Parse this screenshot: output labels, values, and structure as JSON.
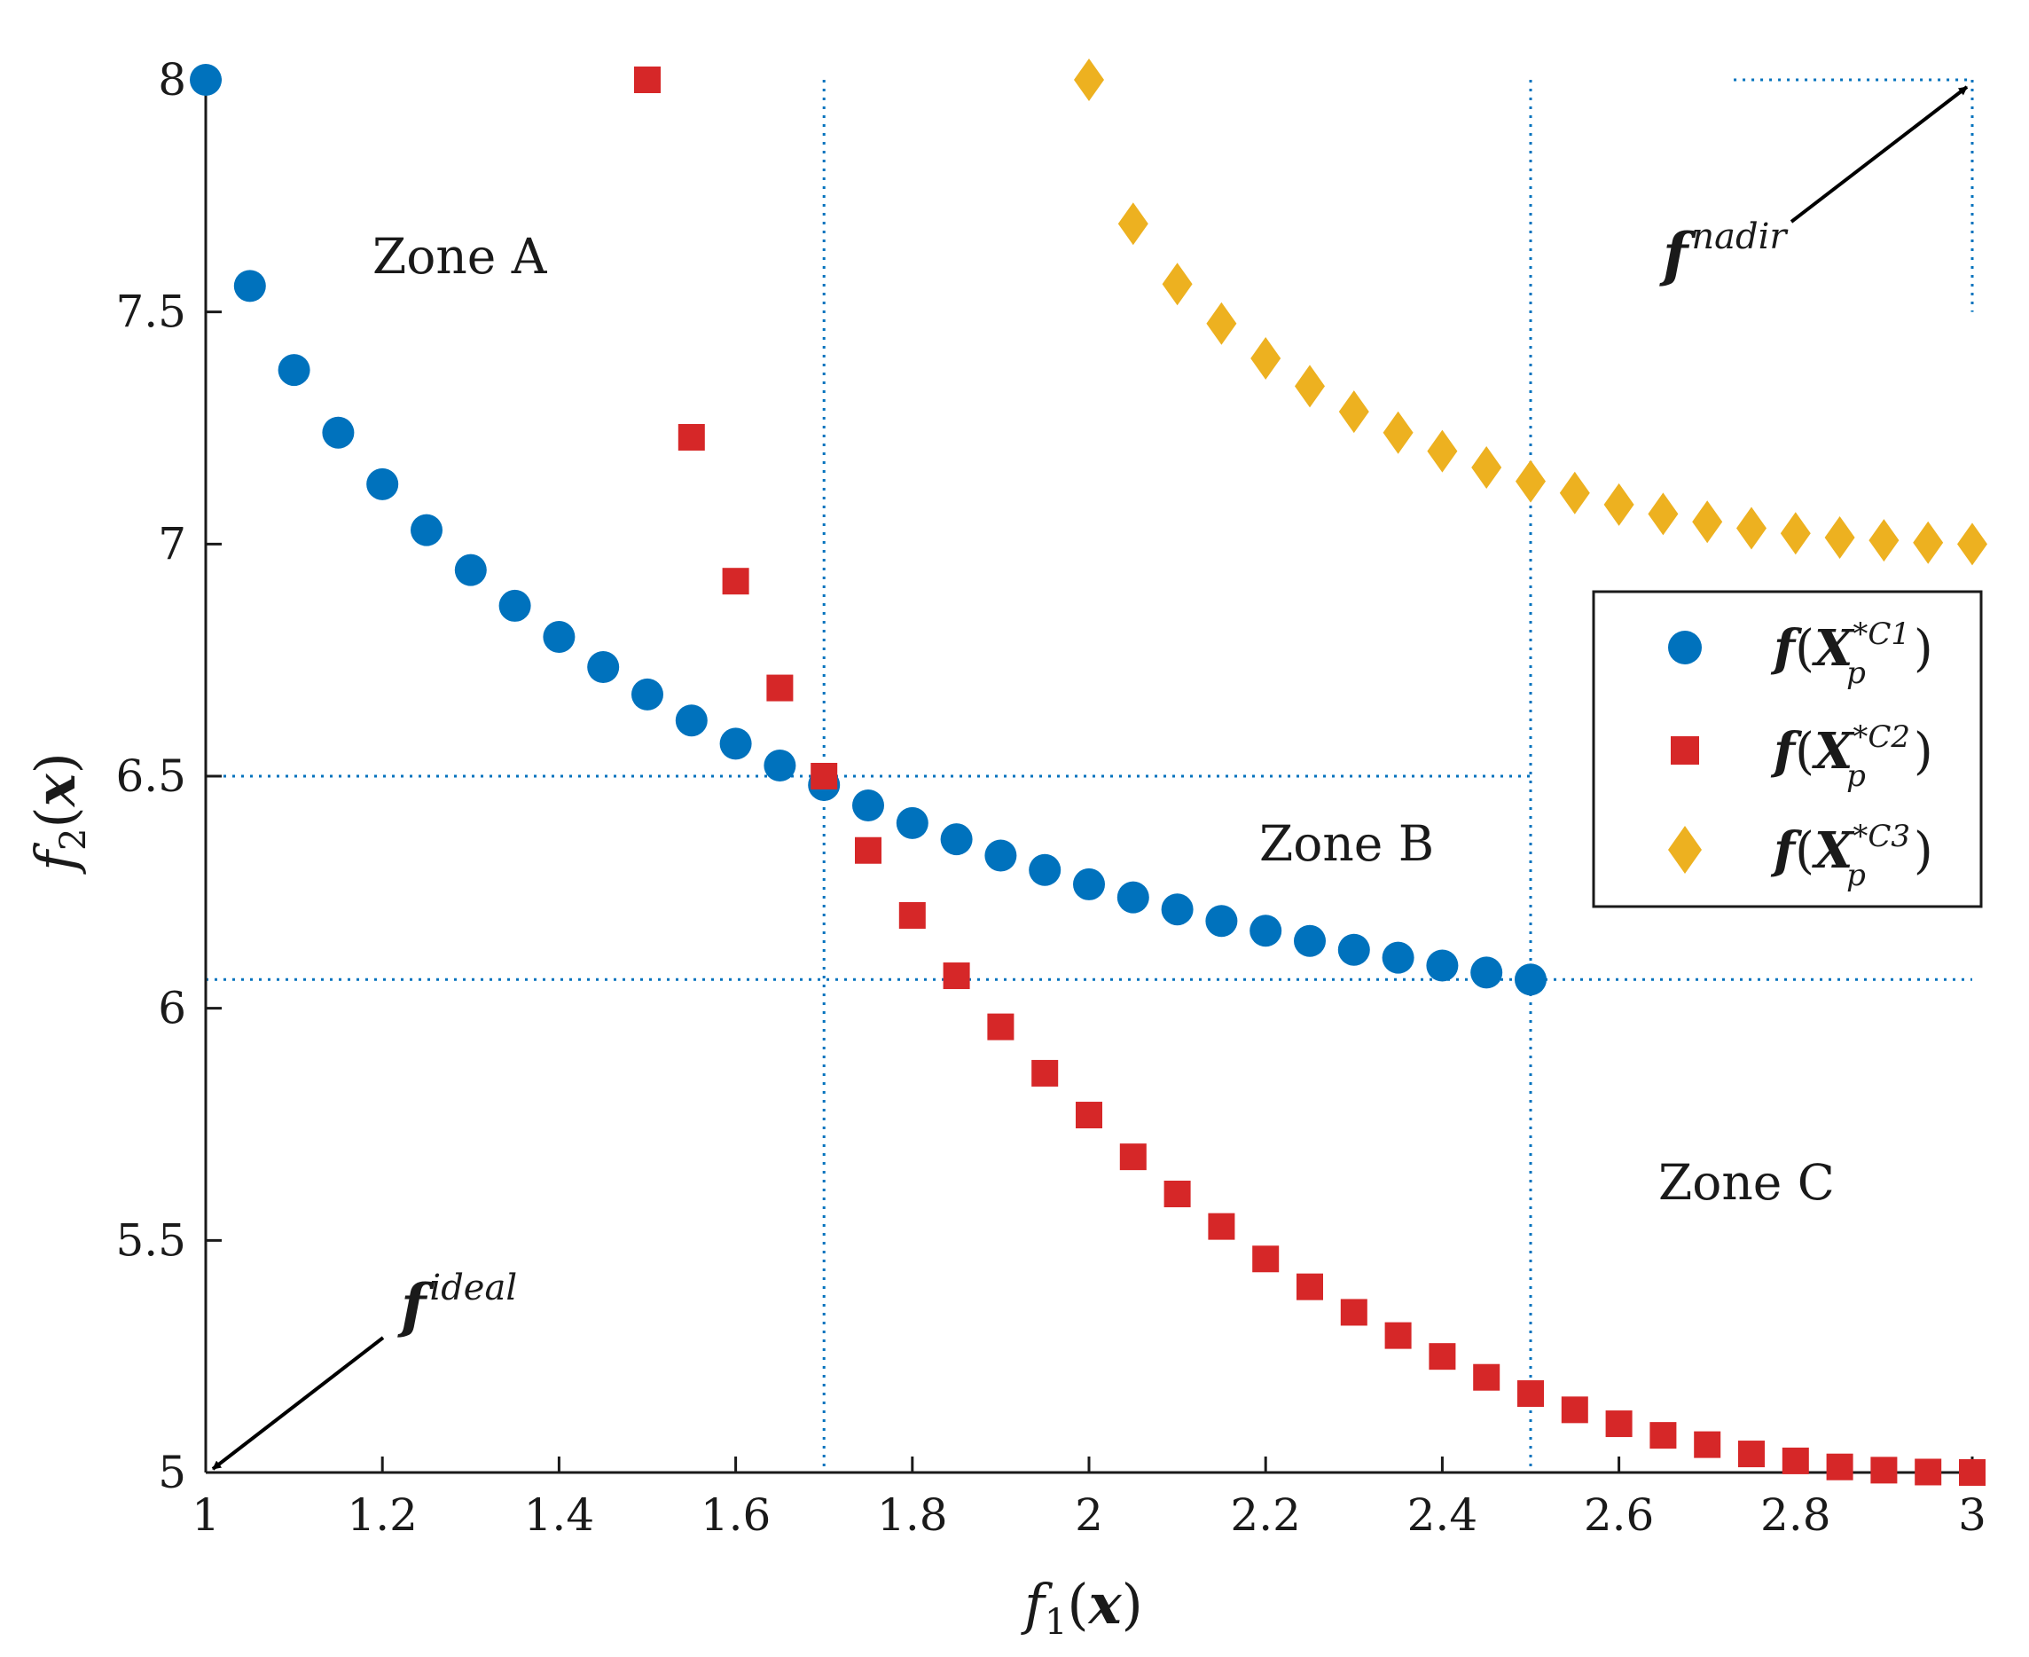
{
  "chart_data": {
    "type": "scatter",
    "title": "",
    "xlabel": "f1(x)",
    "ylabel": "f2(x)",
    "xlim": [
      1,
      3
    ],
    "ylim": [
      5,
      8
    ],
    "xticks": [
      1,
      1.2,
      1.4,
      1.6,
      1.8,
      2,
      2.2,
      2.4,
      2.6,
      2.8,
      3
    ],
    "xtick_labels": [
      "1",
      "1.2",
      "1.4",
      "1.6",
      "1.8",
      "2",
      "2.2",
      "2.4",
      "2.6",
      "2.8",
      "3"
    ],
    "yticks": [
      5,
      5.5,
      6,
      6.5,
      7,
      7.5,
      8
    ],
    "ytick_labels": [
      "5",
      "5.5",
      "6",
      "6.5",
      "7",
      "7.5",
      "8"
    ],
    "grid": false,
    "legend_position": "right",
    "series": [
      {
        "name": "f(X_p^{*C1})",
        "color": "#0072BD",
        "marker": "circle",
        "x": [
          1,
          1.05,
          1.1,
          1.15,
          1.2,
          1.25,
          1.3,
          1.35,
          1.4,
          1.45,
          1.5,
          1.55,
          1.6,
          1.65,
          1.7,
          1.75,
          1.8,
          1.85,
          1.9,
          1.95,
          2,
          2.05,
          2.1,
          2.15,
          2.2,
          2.25,
          2.3,
          2.35,
          2.4,
          2.45,
          2.5
        ],
        "y": [
          8,
          7.556,
          7.375,
          7.24,
          7.129,
          7.03,
          6.944,
          6.867,
          6.8,
          6.735,
          6.676,
          6.62,
          6.57,
          6.523,
          6.481,
          6.437,
          6.399,
          6.364,
          6.329,
          6.298,
          6.267,
          6.239,
          6.213,
          6.188,
          6.167,
          6.145,
          6.126,
          6.109,
          6.092,
          6.077,
          6.062
        ]
      },
      {
        "name": "f(X_p^{*C2})",
        "color": "#D62728",
        "marker": "square",
        "x": [
          1.5,
          1.55,
          1.6,
          1.65,
          1.7,
          1.75,
          1.8,
          1.85,
          1.9,
          1.95,
          2,
          2.05,
          2.1,
          2.15,
          2.2,
          2.25,
          2.3,
          2.35,
          2.4,
          2.45,
          2.5,
          2.55,
          2.6,
          2.65,
          2.7,
          2.75,
          2.8,
          2.85,
          2.9,
          2.95,
          3
        ],
        "y": [
          8,
          7.23,
          6.92,
          6.69,
          6.5,
          6.34,
          6.2,
          6.07,
          5.96,
          5.86,
          5.77,
          5.68,
          5.6,
          5.53,
          5.46,
          5.4,
          5.345,
          5.295,
          5.25,
          5.205,
          5.17,
          5.135,
          5.105,
          5.08,
          5.06,
          5.04,
          5.025,
          5.012,
          5.005,
          5.001,
          5
        ]
      },
      {
        "name": "f(X_p^{*C3})",
        "color": "#EDB120",
        "marker": "diamond",
        "x": [
          2,
          2.05,
          2.1,
          2.15,
          2.2,
          2.25,
          2.3,
          2.35,
          2.4,
          2.45,
          2.5,
          2.55,
          2.6,
          2.65,
          2.7,
          2.75,
          2.8,
          2.85,
          2.9,
          2.95,
          3
        ],
        "y": [
          8,
          7.69,
          7.56,
          7.475,
          7.4,
          7.34,
          7.285,
          7.24,
          7.2,
          7.165,
          7.135,
          7.11,
          7.085,
          7.065,
          7.048,
          7.034,
          7.023,
          7.014,
          7.008,
          7.003,
          7
        ]
      }
    ],
    "reference_lines": {
      "vertical_x": [
        1.7,
        2.5
      ],
      "horizontal_y": [
        6.5,
        6.062
      ],
      "nadir_box": {
        "x": 3,
        "y": 8
      }
    },
    "annotations": {
      "zone_a": "Zone A",
      "zone_b": "Zone B",
      "zone_c": "Zone C",
      "ideal_label": "f",
      "ideal_sup": "ideal",
      "nadir_label": "f",
      "nadir_sup": "nadir"
    }
  },
  "legend": {
    "items": [
      {
        "f": "f",
        "open": "(",
        "X": "X",
        "sup": "*C1",
        "sub": "p",
        "close": ")"
      },
      {
        "f": "f",
        "open": "(",
        "X": "X",
        "sup": "*C2",
        "sub": "p",
        "close": ")"
      },
      {
        "f": "f",
        "open": "(",
        "X": "X",
        "sup": "*C3",
        "sub": "p",
        "close": ")"
      }
    ]
  },
  "axis_labels": {
    "x": {
      "f": "f",
      "sub": "1",
      "open": "(",
      "var": "x",
      "close": ")"
    },
    "y": {
      "f": "f",
      "sub": "2",
      "open": "(",
      "var": "x",
      "close": ")"
    }
  },
  "colors": {
    "c1": "#0072BD",
    "c2": "#D62728",
    "c3": "#EDB120",
    "axis": "#1a1a1a",
    "guide": "#0072BD"
  }
}
